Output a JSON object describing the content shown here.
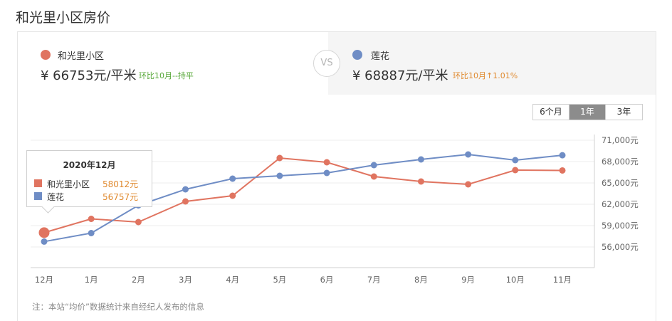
{
  "page": {
    "title": "和光里小区房价"
  },
  "compare": {
    "left": {
      "name": "和光里小区",
      "price": "¥ 66753元/平米",
      "change": "环比10月--持平",
      "color": "#e07460",
      "change_color": "#58a83a"
    },
    "vs_label": "VS",
    "right": {
      "name": "莲花",
      "price": "¥ 68887元/平米",
      "change": "环比10月↑1.01%",
      "color": "#6f8dc5",
      "change_color": "#e08a2f"
    }
  },
  "range_tabs": [
    {
      "label": "6个月",
      "active": false
    },
    {
      "label": "1年",
      "active": true
    },
    {
      "label": "3年",
      "active": false
    }
  ],
  "tooltip": {
    "title": "2020年12月",
    "rows": [
      {
        "name": "和光里小区",
        "value": "58012元",
        "color": "#e07460"
      },
      {
        "name": "莲花",
        "value": "56757元",
        "color": "#6f8dc5"
      }
    ]
  },
  "footnote": "注：本站“均价”数据统计来自经纪人发布的信息",
  "chart_data": {
    "type": "line",
    "categories": [
      "12月",
      "1月",
      "2月",
      "3月",
      "4月",
      "5月",
      "6月",
      "7月",
      "8月",
      "9月",
      "10月",
      "11月"
    ],
    "series": [
      {
        "name": "和光里小区",
        "color": "#e07460",
        "values": [
          58012,
          59950,
          59500,
          62400,
          63200,
          68500,
          67900,
          65900,
          65200,
          64800,
          66800,
          66753
        ]
      },
      {
        "name": "莲花",
        "color": "#6f8dc5",
        "values": [
          56757,
          57950,
          61850,
          64100,
          65600,
          66000,
          66400,
          67500,
          68300,
          69000,
          68200,
          68887
        ]
      }
    ],
    "y_ticks": [
      "56,000元",
      "59,000元",
      "62,000元",
      "65,000元",
      "68,000元",
      "71,000元"
    ],
    "ylim": [
      56000,
      71000
    ],
    "y_axis_position": "right",
    "grid": true,
    "highlight_index": 0
  }
}
